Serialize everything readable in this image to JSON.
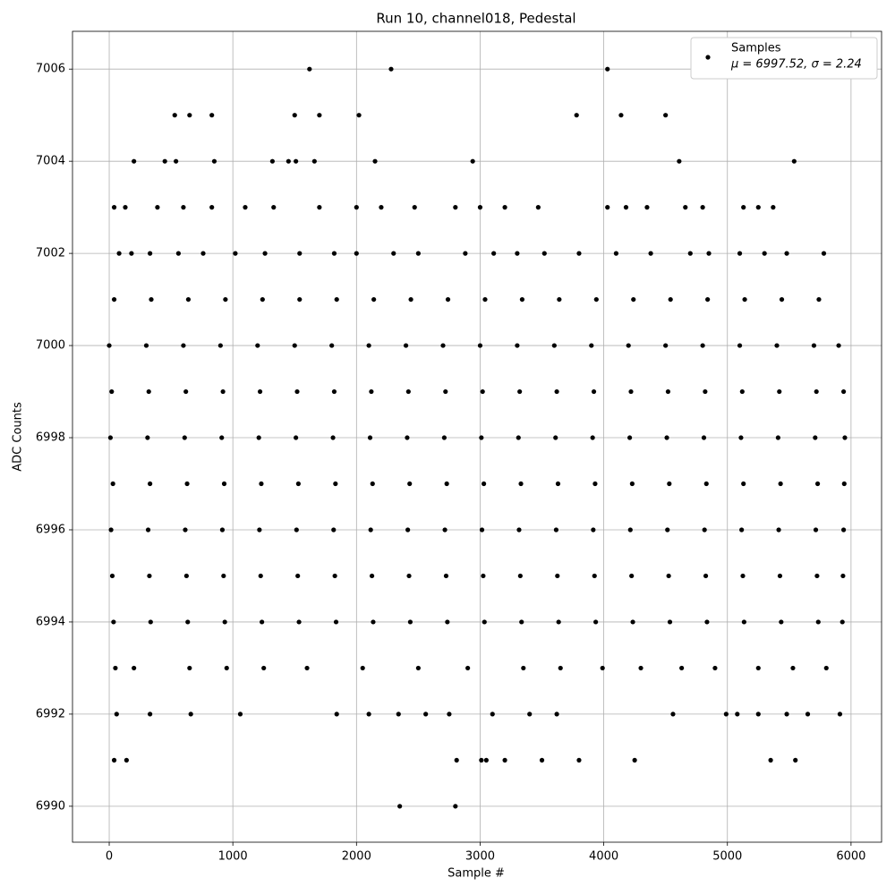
{
  "chart_data": {
    "type": "scatter",
    "title": "Run 10, channel018, Pedestal",
    "x_label": "Sample #",
    "y_label": "ADC Counts",
    "xlim": [
      -297,
      6247
    ],
    "ylim": [
      6989.22,
      7006.82
    ],
    "xticks": [
      0,
      1000,
      2000,
      3000,
      4000,
      5000,
      6000
    ],
    "yticks": [
      6990,
      6992,
      6994,
      6996,
      6998,
      7000,
      7002,
      7004,
      7006
    ],
    "grid": true,
    "legend": "upper right",
    "legend_note": "μ = 6997.52, σ = 2.24",
    "x": [
      40,
      340,
      640,
      940,
      1240,
      1540,
      1840,
      2140,
      2440,
      2740,
      3040,
      3340,
      3640,
      3940,
      4240,
      4540,
      4840,
      5140,
      5440,
      5740,
      0,
      300,
      600,
      900,
      1200,
      1500,
      1800,
      2100,
      2400,
      2700,
      3000,
      3300,
      3600,
      3900,
      4200,
      4500,
      4800,
      5100,
      5400,
      5700,
      5900,
      20,
      320,
      620,
      920,
      1220,
      1520,
      1820,
      2120,
      2420,
      2720,
      3020,
      3320,
      3620,
      3920,
      4220,
      4520,
      4820,
      5120,
      5420,
      5720,
      5940,
      10,
      310,
      610,
      910,
      1210,
      1510,
      1810,
      2110,
      2410,
      2710,
      3010,
      3310,
      3610,
      3910,
      4210,
      4510,
      4810,
      5110,
      5410,
      5710,
      5950,
      30,
      330,
      630,
      930,
      1230,
      1530,
      1830,
      2130,
      2430,
      2730,
      3030,
      3330,
      3630,
      3930,
      4230,
      4530,
      4830,
      5130,
      5430,
      5730,
      5945,
      15,
      315,
      615,
      915,
      1215,
      1515,
      1815,
      2115,
      2415,
      2715,
      3015,
      3315,
      3615,
      3915,
      4215,
      4515,
      4815,
      5115,
      5415,
      5715,
      5940,
      25,
      325,
      625,
      925,
      1225,
      1525,
      1825,
      2125,
      2425,
      2725,
      3025,
      3325,
      3625,
      3925,
      4225,
      4525,
      4825,
      5125,
      5425,
      5725,
      5935,
      35,
      335,
      635,
      935,
      1235,
      1535,
      1835,
      2135,
      2435,
      2735,
      3035,
      3335,
      3635,
      3935,
      4235,
      4535,
      4835,
      5135,
      5435,
      5735,
      5930,
      50,
      200,
      650,
      950,
      1250,
      1600,
      2050,
      2500,
      2900,
      3350,
      3650,
      3990,
      4300,
      4630,
      4900,
      5250,
      5530,
      5800,
      60,
      330,
      660,
      1060,
      1840,
      2100,
      2340,
      2560,
      2750,
      3100,
      3400,
      3620,
      4560,
      4990,
      5080,
      5250,
      5480,
      5650,
      5910,
      40,
      130,
      390,
      600,
      830,
      1100,
      1330,
      1700,
      2000,
      2200,
      2470,
      2800,
      3000,
      3200,
      3470,
      4030,
      4180,
      4350,
      4660,
      4800,
      5130,
      5250,
      5370,
      80,
      180,
      330,
      560,
      760,
      1020,
      1260,
      1540,
      1820,
      2000,
      2300,
      2500,
      2880,
      3110,
      3300,
      3520,
      3800,
      4100,
      4380,
      4700,
      4850,
      5100,
      5300,
      5480,
      5780,
      1620,
      2280,
      4030,
      530,
      650,
      830,
      1500,
      1700,
      2020,
      3780,
      4140,
      4500,
      200,
      450,
      540,
      850,
      1320,
      1450,
      1510,
      1660,
      2150,
      2940,
      4610,
      5540,
      2350,
      2800,
      40,
      140,
      2810,
      3010,
      3050,
      3200,
      3500,
      3800,
      4250,
      5350,
      5550
    ],
    "series": [
      {
        "name": "Samples",
        "color": "#000000",
        "values": [
          7001,
          7001,
          7001,
          7001,
          7001,
          7001,
          7001,
          7001,
          7001,
          7001,
          7001,
          7001,
          7001,
          7001,
          7001,
          7001,
          7001,
          7001,
          7001,
          7001,
          7000,
          7000,
          7000,
          7000,
          7000,
          7000,
          7000,
          7000,
          7000,
          7000,
          7000,
          7000,
          7000,
          7000,
          7000,
          7000,
          7000,
          7000,
          7000,
          7000,
          7000,
          6999,
          6999,
          6999,
          6999,
          6999,
          6999,
          6999,
          6999,
          6999,
          6999,
          6999,
          6999,
          6999,
          6999,
          6999,
          6999,
          6999,
          6999,
          6999,
          6999,
          6999,
          6998,
          6998,
          6998,
          6998,
          6998,
          6998,
          6998,
          6998,
          6998,
          6998,
          6998,
          6998,
          6998,
          6998,
          6998,
          6998,
          6998,
          6998,
          6998,
          6998,
          6998,
          6997,
          6997,
          6997,
          6997,
          6997,
          6997,
          6997,
          6997,
          6997,
          6997,
          6997,
          6997,
          6997,
          6997,
          6997,
          6997,
          6997,
          6997,
          6997,
          6997,
          6997,
          6996,
          6996,
          6996,
          6996,
          6996,
          6996,
          6996,
          6996,
          6996,
          6996,
          6996,
          6996,
          6996,
          6996,
          6996,
          6996,
          6996,
          6996,
          6996,
          6996,
          6996,
          6995,
          6995,
          6995,
          6995,
          6995,
          6995,
          6995,
          6995,
          6995,
          6995,
          6995,
          6995,
          6995,
          6995,
          6995,
          6995,
          6995,
          6995,
          6995,
          6995,
          6995,
          6994,
          6994,
          6994,
          6994,
          6994,
          6994,
          6994,
          6994,
          6994,
          6994,
          6994,
          6994,
          6994,
          6994,
          6994,
          6994,
          6994,
          6994,
          6994,
          6994,
          6994,
          6993,
          6993,
          6993,
          6993,
          6993,
          6993,
          6993,
          6993,
          6993,
          6993,
          6993,
          6993,
          6993,
          6993,
          6993,
          6993,
          6993,
          6993,
          6992,
          6992,
          6992,
          6992,
          6992,
          6992,
          6992,
          6992,
          6992,
          6992,
          6992,
          6992,
          6992,
          6992,
          6992,
          6992,
          6992,
          6992,
          6992,
          7003,
          7003,
          7003,
          7003,
          7003,
          7003,
          7003,
          7003,
          7003,
          7003,
          7003,
          7003,
          7003,
          7003,
          7003,
          7003,
          7003,
          7003,
          7003,
          7003,
          7003,
          7003,
          7003,
          7002,
          7002,
          7002,
          7002,
          7002,
          7002,
          7002,
          7002,
          7002,
          7002,
          7002,
          7002,
          7002,
          7002,
          7002,
          7002,
          7002,
          7002,
          7002,
          7002,
          7002,
          7002,
          7002,
          7002,
          7002,
          7006,
          7006,
          7006,
          7005,
          7005,
          7005,
          7005,
          7005,
          7005,
          7005,
          7005,
          7005,
          7004,
          7004,
          7004,
          7004,
          7004,
          7004,
          7004,
          7004,
          7004,
          7004,
          7004,
          7004,
          6990,
          6990,
          6991,
          6991,
          6991,
          6991,
          6991,
          6991,
          6991,
          6991,
          6991,
          6991,
          6991
        ]
      }
    ]
  }
}
